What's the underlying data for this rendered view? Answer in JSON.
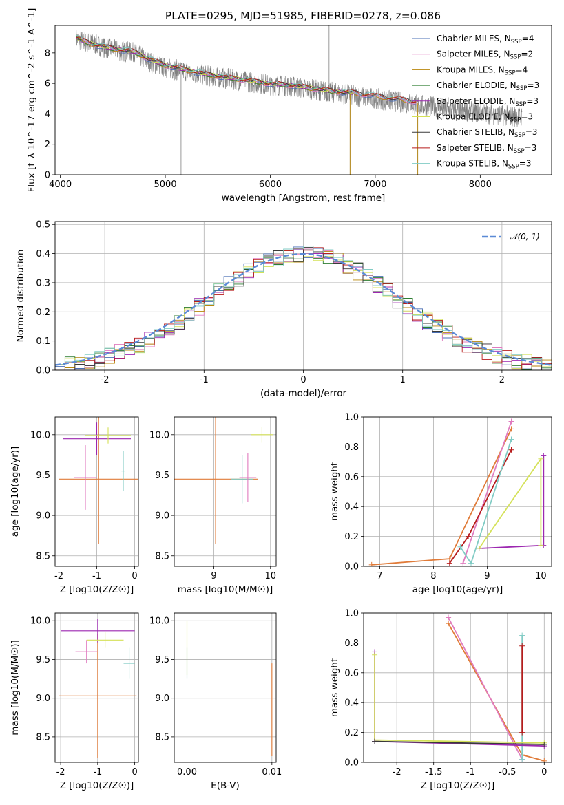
{
  "figure_title": "PLATE=0295, MJD=51985, FIBERID=0278, z=0.086",
  "models": [
    {
      "name": "Chabrier MILES",
      "nssp": "4",
      "color": "#4a6fb5"
    },
    {
      "name": "Salpeter MILES",
      "nssp": "2",
      "color": "#e07bbf"
    },
    {
      "name": "Kroupa MILES",
      "nssp": "4",
      "color": "#b8860b"
    },
    {
      "name": "Chabrier ELODIE",
      "nssp": "3",
      "color": "#2e7d32"
    },
    {
      "name": "Salpeter ELODIE",
      "nssp": "3",
      "color": "#9c27b0"
    },
    {
      "name": "Kroupa ELODIE",
      "nssp": "3",
      "color": "#d4e157"
    },
    {
      "name": "Chabrier STELIB",
      "nssp": "3",
      "color": "#3a3a3a"
    },
    {
      "name": "Salpeter STELIB",
      "nssp": "3",
      "color": "#b71c1c"
    },
    {
      "name": "Kroupa STELIB",
      "nssp": "3",
      "color": "#80cbc4"
    }
  ],
  "chart_data": [
    {
      "type": "line",
      "id": "spectrum",
      "xlabel": "wavelength [Angstrom, rest frame]",
      "ylabel": "Flux [f_λ 10^-17 erg cm^-2 s^-1 A^-1]",
      "xlim": [
        3950,
        8680
      ],
      "ylim": [
        0,
        9.8
      ],
      "xticks": [
        4000,
        5000,
        6000,
        7000,
        8000
      ],
      "yticks": [
        0,
        2,
        4,
        6,
        8
      ],
      "data_color": "#808080",
      "data_points": [
        [
          4150,
          8.9
        ],
        [
          4300,
          8.6
        ],
        [
          4500,
          8.2
        ],
        [
          4700,
          8.0
        ],
        [
          4850,
          7.4
        ],
        [
          5000,
          7.0
        ],
        [
          5200,
          6.8
        ],
        [
          5400,
          6.5
        ],
        [
          5600,
          6.3
        ],
        [
          5800,
          6.1
        ],
        [
          6000,
          5.9
        ],
        [
          6200,
          5.8
        ],
        [
          6400,
          5.6
        ],
        [
          6600,
          5.4
        ],
        [
          6800,
          5.2
        ],
        [
          7000,
          5.0
        ],
        [
          7200,
          4.8
        ],
        [
          7400,
          4.6
        ],
        [
          7600,
          4.4
        ],
        [
          7800,
          4.2
        ],
        [
          8000,
          4.1
        ],
        [
          8200,
          3.9
        ],
        [
          8400,
          3.8
        ]
      ],
      "model_points": [
        [
          4150,
          8.9
        ],
        [
          4300,
          8.5
        ],
        [
          4500,
          8.2
        ],
        [
          4700,
          8.0
        ],
        [
          4850,
          7.5
        ],
        [
          5000,
          7.1
        ],
        [
          5200,
          6.8
        ],
        [
          5400,
          6.5
        ],
        [
          5600,
          6.3
        ],
        [
          5800,
          6.1
        ],
        [
          6000,
          5.9
        ],
        [
          6200,
          5.8
        ],
        [
          6400,
          5.6
        ],
        [
          6600,
          5.4
        ],
        [
          6800,
          5.3
        ],
        [
          7000,
          5.1
        ],
        [
          7200,
          4.9
        ],
        [
          7400,
          4.7
        ]
      ],
      "model_end": 7400,
      "elodie_end": 6800
    },
    {
      "type": "histogram",
      "id": "residuals",
      "xlabel": "(data-model)/error",
      "ylabel": "Normed distribution",
      "xlim": [
        -2.5,
        2.5
      ],
      "ylim": [
        0,
        0.51
      ],
      "xticks": [
        -2,
        -1,
        0,
        1,
        2
      ],
      "yticks": [
        0.0,
        0.1,
        0.2,
        0.3,
        0.4,
        0.5
      ],
      "gaussian_label": "𝒩(0, 1)",
      "gaussian_color": "#5b8ad6"
    },
    {
      "type": "scatter",
      "id": "age-vs-z",
      "xlabel": "Z [log10(Z/Z☉)]",
      "ylabel": "age [log10(age/yr)]",
      "xlim": [
        -2.1,
        0.1
      ],
      "ylim": [
        8.37,
        10.22
      ],
      "xticks": [
        -2,
        -1,
        0
      ],
      "yticks": [
        8.5,
        9.0,
        9.5,
        10.0
      ],
      "points": [
        {
          "x": -0.95,
          "y": 9.45,
          "xerr": 1.05,
          "yerr": 0.8,
          "color": "#e07b39"
        },
        {
          "x": -1.0,
          "y": 9.95,
          "xerr": 0.9,
          "yerr": 0.2,
          "color": "#9c27b0"
        },
        {
          "x": -0.7,
          "y": 9.99,
          "xerr": 0.6,
          "yerr": 0.1,
          "color": "#d4e157"
        },
        {
          "x": -0.3,
          "y": 9.55,
          "xerr": 0.05,
          "yerr": 0.25,
          "color": "#80cbc4"
        },
        {
          "x": -1.3,
          "y": 9.47,
          "xerr": 0.3,
          "yerr": 0.4,
          "color": "#e07bbf"
        }
      ]
    },
    {
      "type": "scatter",
      "id": "age-vs-mass",
      "xlabel": "mass [log10(M/M☉)]",
      "ylabel": "",
      "xlim": [
        8.3,
        10.1
      ],
      "ylim": [
        8.37,
        10.22
      ],
      "xticks": [
        9,
        10
      ],
      "yticks": [
        8.5,
        9.0,
        9.5,
        10.0
      ],
      "points": [
        {
          "x": 9.03,
          "y": 9.45,
          "xerr": 0.75,
          "yerr": 0.8,
          "color": "#e07b39"
        },
        {
          "x": 9.85,
          "y": 10.0,
          "xerr": 0.2,
          "yerr": 0.1,
          "color": "#d4e157"
        },
        {
          "x": 9.5,
          "y": 9.45,
          "xerr": 0.2,
          "yerr": 0.3,
          "color": "#80cbc4"
        },
        {
          "x": 9.6,
          "y": 9.47,
          "xerr": 0.15,
          "yerr": 0.3,
          "color": "#e07bbf"
        }
      ]
    },
    {
      "type": "line",
      "id": "weight-vs-age",
      "xlabel": "age [log10(age/yr)]",
      "ylabel": "mass weight",
      "xlim": [
        6.7,
        10.2
      ],
      "ylim": [
        0,
        1.0
      ],
      "xticks": [
        7,
        8,
        9,
        10
      ],
      "yticks": [
        0.0,
        0.2,
        0.4,
        0.6,
        0.8,
        1.0
      ],
      "series": [
        {
          "color": "#e07b39",
          "points": [
            [
              6.85,
              0.01
            ],
            [
              8.3,
              0.05
            ],
            [
              9.45,
              0.92
            ]
          ]
        },
        {
          "color": "#e07bbf",
          "points": [
            [
              8.55,
              0.02
            ],
            [
              9.45,
              0.97
            ]
          ]
        },
        {
          "color": "#b71c1c",
          "points": [
            [
              8.3,
              0.02
            ],
            [
              8.65,
              0.2
            ],
            [
              9.45,
              0.78
            ]
          ]
        },
        {
          "color": "#80cbc4",
          "points": [
            [
              8.5,
              0.13
            ],
            [
              8.7,
              0.02
            ],
            [
              9.45,
              0.85
            ]
          ]
        },
        {
          "color": "#9c27b0",
          "points": [
            [
              8.85,
              0.12
            ],
            [
              10.05,
              0.14
            ],
            [
              10.05,
              0.74
            ]
          ]
        },
        {
          "color": "#d4e157",
          "points": [
            [
              8.85,
              0.12
            ],
            [
              10.0,
              0.72
            ],
            [
              10.0,
              0.14
            ]
          ]
        }
      ]
    },
    {
      "type": "scatter",
      "id": "mass-vs-z",
      "xlabel": "Z [log10(Z/Z☉)]",
      "ylabel": "mass [log10(M/M☉)]",
      "xlim": [
        -2.15,
        0.1
      ],
      "ylim": [
        8.17,
        10.1
      ],
      "xticks": [
        -2,
        -1,
        0
      ],
      "yticks": [
        8.5,
        9.0,
        9.5,
        10.0
      ],
      "points": [
        {
          "x": -1.0,
          "y": 9.03,
          "xerr": 1.05,
          "yerr": 0.8,
          "color": "#e07b39"
        },
        {
          "x": -1.0,
          "y": 9.87,
          "xerr": 1.0,
          "yerr": 0.15,
          "color": "#9c27b0"
        },
        {
          "x": -0.8,
          "y": 9.75,
          "xerr": 0.5,
          "yerr": 0.1,
          "color": "#d4e157"
        },
        {
          "x": -0.15,
          "y": 9.45,
          "xerr": 0.15,
          "yerr": 0.2,
          "color": "#80cbc4"
        },
        {
          "x": -1.3,
          "y": 9.6,
          "xerr": 0.3,
          "yerr": 0.15,
          "color": "#e07bbf"
        }
      ]
    },
    {
      "type": "scatter",
      "id": "mass-vs-ebv",
      "xlabel": "E(B-V)",
      "ylabel": "",
      "xlim": [
        -0.0015,
        0.0105
      ],
      "ylim": [
        8.17,
        10.1
      ],
      "xticks": [
        0.0,
        0.01
      ],
      "yticks": [
        8.5,
        9.0,
        9.5,
        10.0
      ],
      "points": [
        {
          "x": 0.0,
          "y": 9.65,
          "xerr": 0,
          "yerr": 0.35,
          "color": "#d4e157"
        },
        {
          "x": 0.0,
          "y": 9.45,
          "xerr": 0,
          "yerr": 0.2,
          "color": "#80cbc4"
        },
        {
          "x": 0.01,
          "y": 8.85,
          "xerr": 0,
          "yerr": 0.6,
          "color": "#e07b39"
        }
      ]
    },
    {
      "type": "line",
      "id": "weight-vs-z",
      "xlabel": "Z [log10(Z/Z☉)]",
      "ylabel": "mass weight",
      "xlim": [
        -2.45,
        0.1
      ],
      "ylim": [
        0,
        1.0
      ],
      "xticks": [
        -2.0,
        -1.5,
        -1.0,
        -0.5,
        0.0
      ],
      "yticks": [
        0.0,
        0.2,
        0.4,
        0.6,
        0.8,
        1.0
      ],
      "series": [
        {
          "color": "#e07b39",
          "points": [
            [
              -1.3,
              0.93
            ],
            [
              -0.3,
              0.05
            ],
            [
              0.0,
              0.01
            ]
          ]
        },
        {
          "color": "#e07bbf",
          "points": [
            [
              -1.3,
              0.97
            ],
            [
              -0.3,
              0.02
            ]
          ]
        },
        {
          "color": "#80cbc4",
          "points": [
            [
              -0.3,
              0.85
            ],
            [
              -0.3,
              0.02
            ]
          ]
        },
        {
          "color": "#b71c1c",
          "points": [
            [
              -0.3,
              0.78
            ],
            [
              -0.3,
              0.2
            ]
          ]
        },
        {
          "color": "#9c27b0",
          "points": [
            [
              -2.3,
              0.74
            ],
            [
              -2.3,
              0.14
            ],
            [
              0.0,
              0.11
            ]
          ]
        },
        {
          "color": "#d4e157",
          "points": [
            [
              -2.3,
              0.72
            ],
            [
              -2.3,
              0.15
            ],
            [
              0.0,
              0.13
            ]
          ]
        },
        {
          "color": "#3a3a3a",
          "points": [
            [
              -2.3,
              0.14
            ],
            [
              0.0,
              0.12
            ]
          ]
        }
      ]
    }
  ]
}
